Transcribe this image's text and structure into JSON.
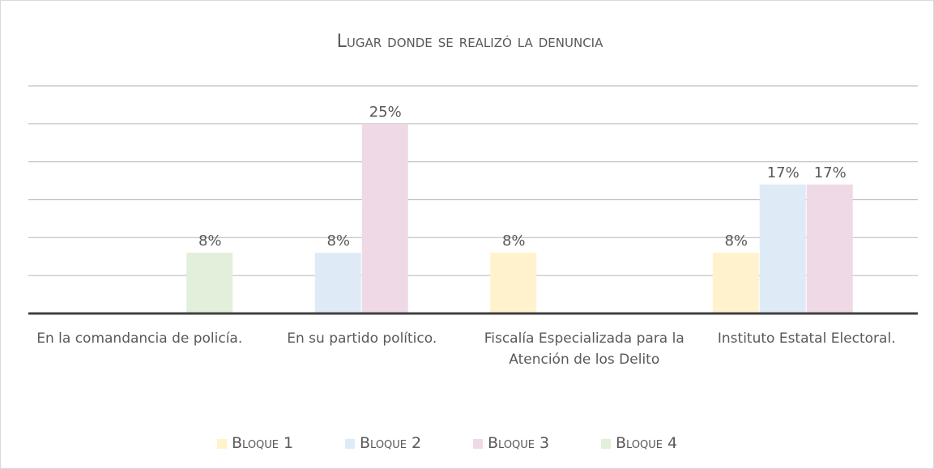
{
  "chart_data": {
    "type": "bar",
    "title": "Lugar donde se realizó la denuncia",
    "categories": [
      "En la comandancia de policía.",
      "En su partido político.",
      "Fiscalía Especializada para la Atención de los Delito",
      "Instituto Estatal Electoral."
    ],
    "series": [
      {
        "name": "Bloque 1",
        "color": "#fff2cc",
        "values": [
          null,
          null,
          8,
          8
        ],
        "value_labels": [
          null,
          null,
          "8%",
          "8%"
        ]
      },
      {
        "name": "Bloque 2",
        "color": "#deebf7",
        "values": [
          null,
          8,
          null,
          17
        ],
        "value_labels": [
          null,
          "8%",
          null,
          "17%"
        ]
      },
      {
        "name": "Bloque 3",
        "color": "#f0d9e6",
        "values": [
          null,
          25,
          null,
          17
        ],
        "value_labels": [
          null,
          "25%",
          null,
          "17%"
        ]
      },
      {
        "name": "Bloque 4",
        "color": "#e2efda",
        "values": [
          8,
          null,
          null,
          null
        ],
        "value_labels": [
          "8%",
          null,
          null,
          null
        ]
      }
    ],
    "ylim": [
      0,
      30
    ],
    "yticks": [
      0,
      5,
      10,
      15,
      20,
      25,
      30
    ],
    "grid": true,
    "legend": "bottom"
  }
}
